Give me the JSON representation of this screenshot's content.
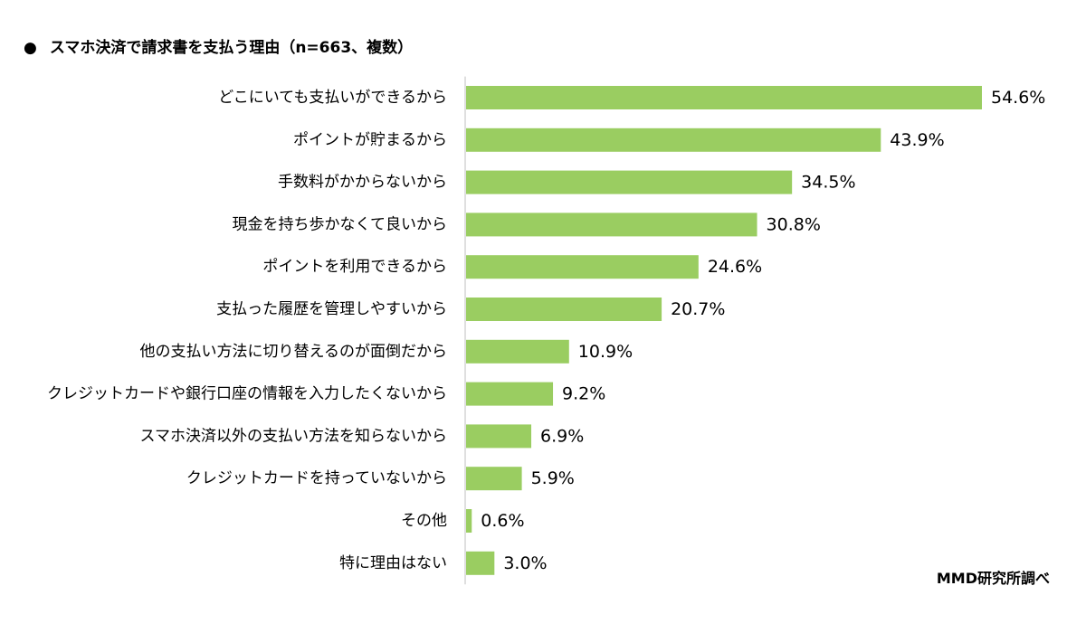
{
  "title": "スマホ決済で請求書を支払う理由（n=663、複数）",
  "title_bullet": "●",
  "credit": "MMD研究所調べ",
  "colors": {
    "bar": "#9ACD61",
    "axis": "#BFBFBF",
    "text": "#000000"
  },
  "chart_data": {
    "type": "bar",
    "orientation": "horizontal",
    "title": "スマホ決済で請求書を支払う理由（n=663、複数）",
    "categories": [
      "どこにいても支払いができるから",
      "ポイントが貯まるから",
      "手数料がかからないから",
      "現金を持ち歩かなくて良いから",
      "ポイントを利用できるから",
      "支払った履歴を管理しやすいから",
      "他の支払い方法に切り替えるのが面倒だから",
      "クレジットカードや銀行口座の情報を入力したくないから",
      "スマホ決済以外の支払い方法を知らないから",
      "クレジットカードを持っていないから",
      "その他",
      "特に理由はない"
    ],
    "values": [
      54.6,
      43.9,
      34.5,
      30.8,
      24.6,
      20.7,
      10.9,
      9.2,
      6.9,
      5.9,
      0.6,
      3.0
    ],
    "value_labels": [
      "54.6%",
      "43.9%",
      "34.5%",
      "30.8%",
      "24.6%",
      "20.7%",
      "10.9%",
      "9.2%",
      "6.9%",
      "5.9%",
      "0.6%",
      "3.0%"
    ],
    "unit": "%",
    "xlim": [
      0,
      54.6
    ],
    "grid": false,
    "legend": "none"
  }
}
